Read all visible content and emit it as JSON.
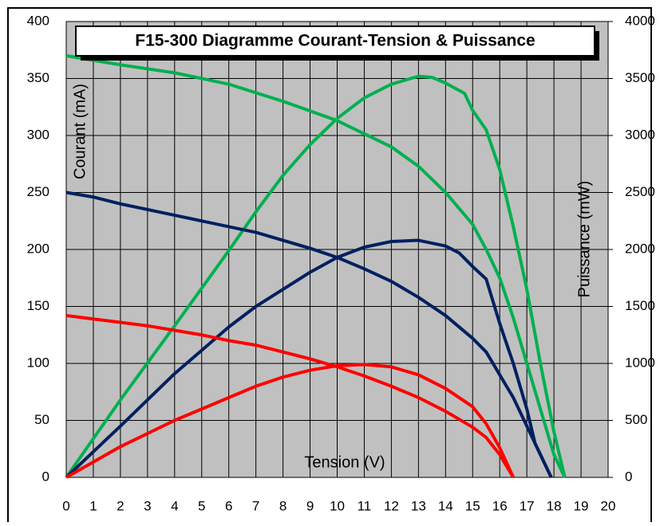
{
  "chart_data": {
    "type": "line",
    "title": "F15-300 Diagramme Courant-Tension & Puissance",
    "xlabel": "Tension (V)",
    "ylabel": "Courant (mA)",
    "y2label": "Puissance (mW)",
    "xlim": [
      0,
      20
    ],
    "xticks": [
      0,
      1,
      2,
      3,
      4,
      5,
      6,
      7,
      8,
      9,
      10,
      11,
      12,
      13,
      14,
      15,
      16,
      17,
      18,
      19,
      20
    ],
    "ylim": [
      0,
      400
    ],
    "yticks": [
      0,
      50,
      100,
      150,
      200,
      250,
      300,
      350,
      400
    ],
    "y2lim": [
      0,
      4000
    ],
    "y2ticks": [
      0,
      500,
      1000,
      1500,
      2000,
      2500,
      3000,
      3500,
      4000
    ],
    "grid": true,
    "series": [
      {
        "color": "#00b050",
        "axis": "y",
        "x": [
          0,
          2,
          4,
          6,
          8,
          10,
          12,
          13,
          14,
          15,
          15.5,
          16,
          16.5,
          17,
          17.5,
          18,
          18.4
        ],
        "values": [
          370,
          362,
          355,
          345,
          330,
          313,
          290,
          273,
          250,
          222,
          200,
          175,
          140,
          100,
          60,
          20,
          0
        ]
      },
      {
        "color": "#00b050",
        "axis": "y2",
        "x": [
          0,
          2,
          4,
          6,
          7,
          8,
          9,
          10,
          11,
          12,
          13,
          13.5,
          14,
          14.7,
          15,
          15.5,
          16,
          16.5,
          17,
          17.5,
          18,
          18.4
        ],
        "values": [
          0,
          680,
          1330,
          1990,
          2330,
          2650,
          2920,
          3150,
          3330,
          3450,
          3520,
          3510,
          3460,
          3370,
          3220,
          3050,
          2700,
          2200,
          1650,
          1000,
          400,
          0
        ]
      },
      {
        "color": "#002060",
        "axis": "y",
        "x": [
          0,
          1,
          2,
          3,
          4,
          5,
          6,
          7,
          8,
          9,
          10,
          11,
          12,
          13,
          14,
          15,
          15.5,
          16,
          16.5,
          17,
          17.5,
          17.9
        ],
        "values": [
          250,
          246,
          240,
          235,
          230,
          225,
          220,
          215,
          208,
          201,
          193,
          183,
          172,
          158,
          142,
          122,
          110,
          90,
          70,
          45,
          20,
          0
        ]
      },
      {
        "color": "#002060",
        "axis": "y2",
        "x": [
          0,
          2,
          4,
          6,
          7,
          8,
          9,
          10,
          11,
          12,
          13,
          14,
          14.5,
          15,
          15.5,
          16,
          16.5,
          17,
          17.3,
          17.5,
          17.9
        ],
        "values": [
          0,
          450,
          910,
          1320,
          1500,
          1650,
          1800,
          1930,
          2020,
          2070,
          2080,
          2030,
          1970,
          1850,
          1740,
          1350,
          1000,
          600,
          300,
          200,
          0
        ]
      },
      {
        "color": "#ff0000",
        "axis": "y",
        "x": [
          0,
          1,
          2,
          3,
          4,
          5,
          6,
          7,
          8,
          9,
          10,
          11,
          12,
          13,
          14,
          15,
          15.5,
          16,
          16.5
        ],
        "values": [
          142,
          139,
          136,
          133,
          129,
          125,
          120,
          116,
          110,
          104,
          97,
          89,
          80,
          70,
          58,
          44,
          35,
          20,
          0
        ]
      },
      {
        "color": "#ff0000",
        "axis": "y2",
        "x": [
          0,
          2,
          4,
          6,
          7,
          8,
          9,
          10,
          11,
          12,
          13,
          14,
          15,
          15.5,
          16,
          16.5
        ],
        "values": [
          0,
          270,
          500,
          700,
          800,
          880,
          940,
          980,
          990,
          970,
          900,
          780,
          620,
          470,
          260,
          0
        ]
      }
    ]
  }
}
